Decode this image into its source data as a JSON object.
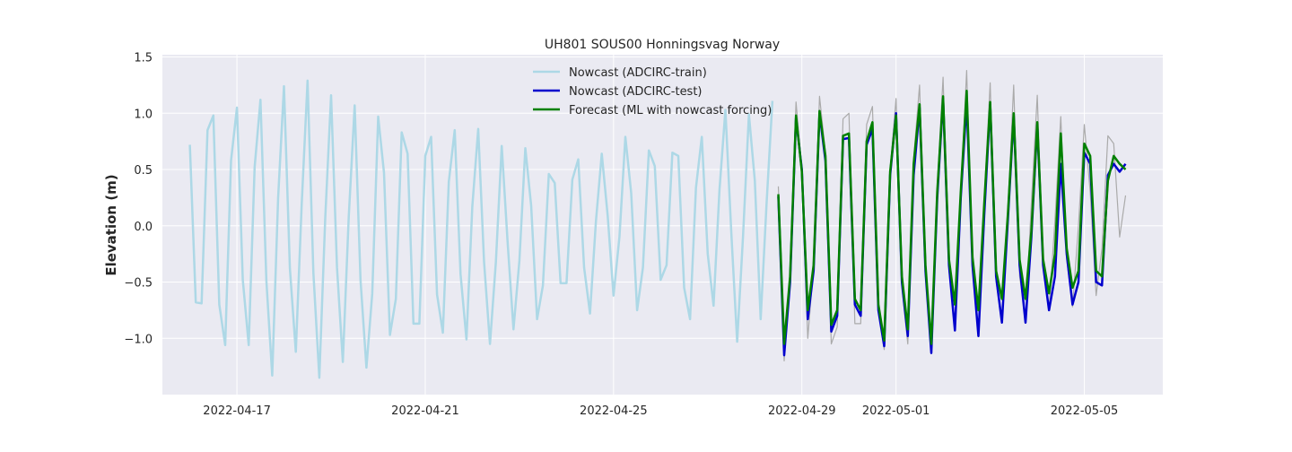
{
  "chart_data": {
    "type": "line",
    "title": "UH801 SOUS00 Honningsvag Norway",
    "xlabel": "",
    "ylabel": "Elevation (m)",
    "x_ticks": [
      "2022-04-17",
      "2022-04-21",
      "2022-04-25",
      "2022-04-29",
      "2022-05-01",
      "2022-05-05"
    ],
    "y_ticks": [
      "1.5",
      "1.0",
      "0.5",
      "0.0",
      "−0.5",
      "−1.0"
    ],
    "x_range": [
      "2022-04-15 10:00",
      "2022-05-06 16:00"
    ],
    "ylim": [
      -1.5,
      1.52
    ],
    "grid": true,
    "legend_position": "top-center",
    "series": [
      {
        "name": "Nowcast (ADCIRC-train)",
        "color": "#add8e6",
        "x": [
          "2022-04-16 00:00",
          "2022-04-16 03:00",
          "2022-04-16 06:00",
          "2022-04-16 09:00",
          "2022-04-16 12:00",
          "2022-04-16 15:00",
          "2022-04-16 18:00",
          "2022-04-16 21:00",
          "2022-04-17 00:00",
          "2022-04-17 03:00",
          "2022-04-17 06:00",
          "2022-04-17 09:00",
          "2022-04-17 12:00",
          "2022-04-17 15:00",
          "2022-04-17 18:00",
          "2022-04-17 21:00",
          "2022-04-18 00:00",
          "2022-04-18 03:00",
          "2022-04-18 06:00",
          "2022-04-18 09:00",
          "2022-04-18 12:00",
          "2022-04-18 15:00",
          "2022-04-18 18:00",
          "2022-04-18 21:00",
          "2022-04-19 00:00",
          "2022-04-19 03:00",
          "2022-04-19 06:00",
          "2022-04-19 09:00",
          "2022-04-19 12:00",
          "2022-04-19 15:00",
          "2022-04-19 18:00",
          "2022-04-19 21:00",
          "2022-04-20 00:00",
          "2022-04-20 03:00",
          "2022-04-20 06:00",
          "2022-04-20 09:00",
          "2022-04-20 12:00",
          "2022-04-20 15:00",
          "2022-04-20 18:00",
          "2022-04-20 21:00",
          "2022-04-21 00:00",
          "2022-04-21 03:00",
          "2022-04-21 06:00",
          "2022-04-21 09:00",
          "2022-04-21 12:00",
          "2022-04-21 15:00",
          "2022-04-21 18:00",
          "2022-04-21 21:00",
          "2022-04-22 00:00",
          "2022-04-22 03:00",
          "2022-04-22 06:00",
          "2022-04-22 09:00",
          "2022-04-22 12:00",
          "2022-04-22 15:00",
          "2022-04-22 18:00",
          "2022-04-22 21:00",
          "2022-04-23 00:00",
          "2022-04-23 03:00",
          "2022-04-23 06:00",
          "2022-04-23 09:00",
          "2022-04-23 12:00",
          "2022-04-23 15:00",
          "2022-04-23 18:00",
          "2022-04-23 21:00",
          "2022-04-24 00:00",
          "2022-04-24 03:00",
          "2022-04-24 06:00",
          "2022-04-24 09:00",
          "2022-04-24 12:00",
          "2022-04-24 15:00",
          "2022-04-24 18:00",
          "2022-04-24 21:00",
          "2022-04-25 00:00",
          "2022-04-25 03:00",
          "2022-04-25 06:00",
          "2022-04-25 09:00",
          "2022-04-25 12:00",
          "2022-04-25 15:00",
          "2022-04-25 18:00",
          "2022-04-25 21:00",
          "2022-04-26 00:00",
          "2022-04-26 03:00",
          "2022-04-26 06:00",
          "2022-04-26 09:00",
          "2022-04-26 12:00",
          "2022-04-26 15:00",
          "2022-04-26 18:00",
          "2022-04-26 21:00",
          "2022-04-27 00:00",
          "2022-04-27 03:00",
          "2022-04-27 06:00",
          "2022-04-27 09:00",
          "2022-04-27 12:00",
          "2022-04-27 15:00",
          "2022-04-27 18:00",
          "2022-04-27 21:00",
          "2022-04-28 00:00",
          "2022-04-28 03:00",
          "2022-04-28 06:00",
          "2022-04-28 09:00"
        ],
        "values": [
          0.72,
          -0.68,
          -0.69,
          0.85,
          0.98,
          -0.7,
          -1.06,
          0.58,
          1.05,
          -0.48,
          -1.06,
          0.52,
          1.12,
          -0.49,
          -1.33,
          0.25,
          1.24,
          -0.38,
          -1.12,
          0.18,
          1.29,
          -0.42,
          -1.35,
          0.07,
          1.16,
          -0.37,
          -1.21,
          0.08,
          1.07,
          -0.48,
          -1.26,
          -0.6,
          0.97,
          0.47,
          -0.97,
          -0.65,
          0.83,
          0.64,
          -0.87,
          -0.87,
          0.62,
          0.79,
          -0.61,
          -0.95,
          0.39,
          0.85,
          -0.43,
          -1.01,
          0.17,
          0.86,
          -0.32,
          -1.05,
          -0.32,
          0.71,
          -0.15,
          -0.92,
          -0.31,
          0.69,
          0.18,
          -0.83,
          -0.53,
          0.46,
          0.38,
          -0.51,
          -0.51,
          0.41,
          0.59,
          -0.37,
          -0.78,
          0.04,
          0.64,
          0.09,
          -0.62,
          -0.1,
          0.79,
          0.29,
          -0.75,
          -0.37,
          0.67,
          0.53,
          -0.48,
          -0.35,
          0.65,
          0.62,
          -0.55,
          -0.83,
          0.34,
          0.79,
          -0.25,
          -0.71,
          0.32,
          1.03,
          -0.05,
          -1.03,
          -0.1,
          0.99,
          0.4,
          -0.83,
          0.2,
          1.11
        ]
      },
      {
        "name": "",
        "color": "#aaaaaa",
        "x": [
          "2022-04-28 12:00",
          "2022-04-28 15:00",
          "2022-04-28 18:00",
          "2022-04-28 21:00",
          "2022-04-29 00:00",
          "2022-04-29 03:00",
          "2022-04-29 06:00",
          "2022-04-29 09:00",
          "2022-04-29 12:00",
          "2022-04-29 15:00",
          "2022-04-29 18:00",
          "2022-04-29 21:00",
          "2022-04-30 00:00",
          "2022-04-30 03:00",
          "2022-04-30 06:00",
          "2022-04-30 09:00",
          "2022-04-30 12:00",
          "2022-04-30 15:00",
          "2022-04-30 18:00",
          "2022-04-30 21:00",
          "2022-05-01 00:00",
          "2022-05-01 03:00",
          "2022-05-01 06:00",
          "2022-05-01 09:00",
          "2022-05-01 12:00",
          "2022-05-01 15:00",
          "2022-05-01 18:00",
          "2022-05-01 21:00",
          "2022-05-02 00:00",
          "2022-05-02 03:00",
          "2022-05-02 06:00",
          "2022-05-02 09:00",
          "2022-05-02 12:00",
          "2022-05-02 15:00",
          "2022-05-02 18:00",
          "2022-05-02 21:00",
          "2022-05-03 00:00",
          "2022-05-03 03:00",
          "2022-05-03 06:00",
          "2022-05-03 09:00",
          "2022-05-03 12:00",
          "2022-05-03 15:00",
          "2022-05-03 18:00",
          "2022-05-03 21:00",
          "2022-05-04 00:00",
          "2022-05-04 03:00",
          "2022-05-04 06:00",
          "2022-05-04 09:00",
          "2022-05-04 12:00",
          "2022-05-04 15:00",
          "2022-05-04 18:00",
          "2022-05-04 21:00",
          "2022-05-05 00:00",
          "2022-05-05 03:00",
          "2022-05-05 06:00",
          "2022-05-05 09:00",
          "2022-05-05 12:00",
          "2022-05-05 15:00",
          "2022-05-05 18:00",
          "2022-05-05 21:00"
        ],
        "values": [
          0.35,
          -1.2,
          -0.4,
          1.1,
          0.5,
          -1.0,
          -0.35,
          1.15,
          0.65,
          -1.05,
          -0.9,
          0.95,
          1.0,
          -0.87,
          -0.87,
          0.9,
          1.06,
          -0.75,
          -1.1,
          0.5,
          1.13,
          -0.55,
          -1.05,
          0.6,
          1.25,
          -0.45,
          -1.05,
          0.35,
          1.32,
          -0.4,
          -0.85,
          0.3,
          1.38,
          -0.38,
          -0.95,
          0.25,
          1.27,
          -0.5,
          -0.85,
          0.15,
          1.25,
          -0.45,
          -0.82,
          0.2,
          1.16,
          -0.35,
          -0.75,
          0.05,
          0.97,
          -0.3,
          -0.72,
          0.0,
          0.9,
          0.3,
          -0.62,
          -0.2,
          0.8,
          0.73,
          -0.1,
          0.27
        ]
      },
      {
        "name": "Nowcast (ADCIRC-test)",
        "color": "#0000cd",
        "x": [
          "2022-04-28 12:00",
          "2022-04-28 15:00",
          "2022-04-28 18:00",
          "2022-04-28 21:00",
          "2022-04-29 00:00",
          "2022-04-29 03:00",
          "2022-04-29 06:00",
          "2022-04-29 09:00",
          "2022-04-29 12:00",
          "2022-04-29 15:00",
          "2022-04-29 18:00",
          "2022-04-29 21:00",
          "2022-04-30 00:00",
          "2022-04-30 03:00",
          "2022-04-30 06:00",
          "2022-04-30 09:00",
          "2022-04-30 12:00",
          "2022-04-30 15:00",
          "2022-04-30 18:00",
          "2022-04-30 21:00",
          "2022-05-01 00:00",
          "2022-05-01 03:00",
          "2022-05-01 06:00",
          "2022-05-01 09:00",
          "2022-05-01 12:00",
          "2022-05-01 15:00",
          "2022-05-01 18:00",
          "2022-05-01 21:00",
          "2022-05-02 00:00",
          "2022-05-02 03:00",
          "2022-05-02 06:00",
          "2022-05-02 09:00",
          "2022-05-02 12:00",
          "2022-05-02 15:00",
          "2022-05-02 18:00",
          "2022-05-02 21:00",
          "2022-05-03 00:00",
          "2022-05-03 03:00",
          "2022-05-03 06:00",
          "2022-05-03 09:00",
          "2022-05-03 12:00",
          "2022-05-03 15:00",
          "2022-05-03 18:00",
          "2022-05-03 21:00",
          "2022-05-04 00:00",
          "2022-05-04 03:00",
          "2022-05-04 06:00",
          "2022-05-04 09:00",
          "2022-05-04 12:00",
          "2022-05-04 15:00",
          "2022-05-04 18:00",
          "2022-05-04 21:00",
          "2022-05-05 00:00",
          "2022-05-05 03:00",
          "2022-05-05 06:00",
          "2022-05-05 09:00",
          "2022-05-05 12:00",
          "2022-05-05 15:00",
          "2022-05-05 18:00",
          "2022-05-05 21:00"
        ],
        "values": [
          0.26,
          -1.15,
          -0.5,
          0.96,
          0.5,
          -0.83,
          -0.4,
          1.0,
          0.58,
          -0.94,
          -0.8,
          0.77,
          0.78,
          -0.7,
          -0.8,
          0.72,
          0.86,
          -0.75,
          -1.07,
          0.45,
          1.0,
          -0.5,
          -0.98,
          0.45,
          1.05,
          -0.4,
          -1.13,
          0.25,
          1.13,
          -0.35,
          -0.93,
          0.25,
          1.1,
          -0.35,
          -0.98,
          0.1,
          1.08,
          -0.45,
          -0.86,
          0.05,
          0.98,
          -0.35,
          -0.86,
          -0.1,
          0.9,
          -0.35,
          -0.75,
          -0.45,
          0.55,
          -0.25,
          -0.7,
          -0.5,
          0.65,
          0.55,
          -0.5,
          -0.53,
          0.45,
          0.55,
          0.48,
          0.55
        ]
      },
      {
        "name": "Forecast (ML with nowcast forcing)",
        "color": "#008000",
        "x": [
          "2022-04-28 12:00",
          "2022-04-28 15:00",
          "2022-04-28 18:00",
          "2022-04-28 21:00",
          "2022-04-29 00:00",
          "2022-04-29 03:00",
          "2022-04-29 06:00",
          "2022-04-29 09:00",
          "2022-04-29 12:00",
          "2022-04-29 15:00",
          "2022-04-29 18:00",
          "2022-04-29 21:00",
          "2022-04-30 00:00",
          "2022-04-30 03:00",
          "2022-04-30 06:00",
          "2022-04-30 09:00",
          "2022-04-30 12:00",
          "2022-04-30 15:00",
          "2022-04-30 18:00",
          "2022-04-30 21:00",
          "2022-05-01 00:00",
          "2022-05-01 03:00",
          "2022-05-01 06:00",
          "2022-05-01 09:00",
          "2022-05-01 12:00",
          "2022-05-01 15:00",
          "2022-05-01 18:00",
          "2022-05-01 21:00",
          "2022-05-02 00:00",
          "2022-05-02 03:00",
          "2022-05-02 06:00",
          "2022-05-02 09:00",
          "2022-05-02 12:00",
          "2022-05-02 15:00",
          "2022-05-02 18:00",
          "2022-05-02 21:00",
          "2022-05-03 00:00",
          "2022-05-03 03:00",
          "2022-05-03 06:00",
          "2022-05-03 09:00",
          "2022-05-03 12:00",
          "2022-05-03 15:00",
          "2022-05-03 18:00",
          "2022-05-03 21:00",
          "2022-05-04 00:00",
          "2022-05-04 03:00",
          "2022-05-04 06:00",
          "2022-05-04 09:00",
          "2022-05-04 12:00",
          "2022-05-04 15:00",
          "2022-05-04 18:00",
          "2022-05-04 21:00",
          "2022-05-05 00:00",
          "2022-05-05 03:00",
          "2022-05-05 06:00",
          "2022-05-05 09:00",
          "2022-05-05 12:00",
          "2022-05-05 15:00",
          "2022-05-05 18:00",
          "2022-05-05 21:00"
        ],
        "values": [
          0.28,
          -1.05,
          -0.45,
          0.98,
          0.48,
          -0.75,
          -0.35,
          1.02,
          0.62,
          -0.88,
          -0.75,
          0.8,
          0.82,
          -0.65,
          -0.75,
          0.75,
          0.92,
          -0.7,
          -1.02,
          0.48,
          0.98,
          -0.45,
          -0.92,
          0.55,
          1.08,
          -0.35,
          -1.05,
          0.3,
          1.15,
          -0.3,
          -0.7,
          0.3,
          1.2,
          -0.28,
          -0.75,
          0.2,
          1.1,
          -0.4,
          -0.65,
          0.1,
          1.0,
          -0.3,
          -0.65,
          -0.05,
          0.92,
          -0.3,
          -0.6,
          -0.25,
          0.82,
          -0.2,
          -0.55,
          -0.4,
          0.73,
          0.62,
          -0.4,
          -0.45,
          0.4,
          0.62,
          0.55,
          0.5
        ]
      }
    ]
  }
}
